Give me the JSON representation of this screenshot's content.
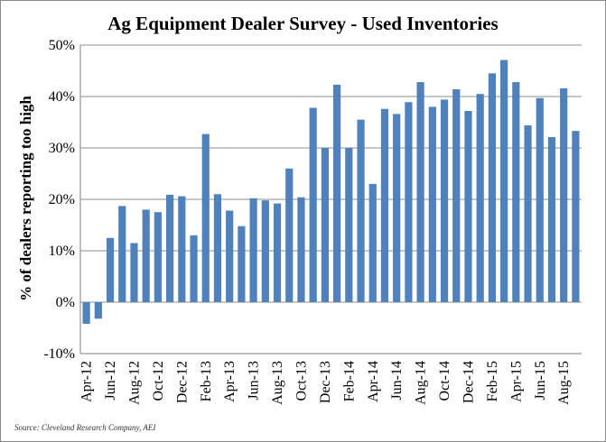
{
  "chart_data": {
    "type": "bar",
    "title": "Ag Equipment Dealer Survey - Used Inventories",
    "ylabel": "% of dealers reporting too high",
    "xlabel": "",
    "source": "Source: Cleveland Research Company, AEI",
    "ylim": [
      -10,
      50
    ],
    "yticks": [
      -10,
      0,
      10,
      20,
      30,
      40,
      50
    ],
    "ytick_labels": [
      "-10%",
      "0%",
      "10%",
      "20%",
      "30%",
      "40%",
      "50%"
    ],
    "grid": true,
    "legend": "none",
    "bar_color": "#4f81bd",
    "categories": [
      "Apr-12",
      "May-12",
      "Jun-12",
      "Jul-12",
      "Aug-12",
      "Sep-12",
      "Oct-12",
      "Nov-12",
      "Dec-12",
      "Jan-13",
      "Feb-13",
      "Mar-13",
      "Apr-13",
      "May-13",
      "Jun-13",
      "Jul-13",
      "Aug-13",
      "Sep-13",
      "Oct-13",
      "Nov-13",
      "Dec-13",
      "Jan-14",
      "Feb-14",
      "Mar-14",
      "Apr-14",
      "May-14",
      "Jun-14",
      "Jul-14",
      "Aug-14",
      "Sep-14",
      "Oct-14",
      "Nov-14",
      "Dec-14",
      "Jan-15",
      "Feb-15",
      "Mar-15",
      "Apr-15",
      "May-15",
      "Jun-15",
      "Jul-15",
      "Aug-15",
      "Sep-15"
    ],
    "visible_x_labels": [
      "Apr-12",
      "Jun-12",
      "Aug-12",
      "Oct-12",
      "Dec-12",
      "Feb-13",
      "Apr-13",
      "Jun-13",
      "Aug-13",
      "Oct-13",
      "Dec-13",
      "Feb-14",
      "Apr-14",
      "Jun-14",
      "Aug-14",
      "Oct-14",
      "Dec-14",
      "Feb-15",
      "Apr-15",
      "Jun-15",
      "Aug-15"
    ],
    "values": [
      -4.2,
      -3.2,
      12.5,
      18.7,
      11.5,
      18.0,
      17.5,
      20.9,
      20.6,
      13.0,
      32.7,
      21.0,
      17.8,
      14.8,
      20.2,
      19.8,
      19.2,
      26.0,
      20.4,
      37.8,
      30.0,
      42.3,
      30.0,
      35.5,
      23.0,
      37.6,
      36.6,
      38.9,
      42.8,
      38.0,
      39.4,
      41.4,
      37.2,
      40.5,
      44.5,
      47.1,
      42.8,
      34.4,
      39.7,
      32.1,
      41.6,
      33.3
    ]
  }
}
